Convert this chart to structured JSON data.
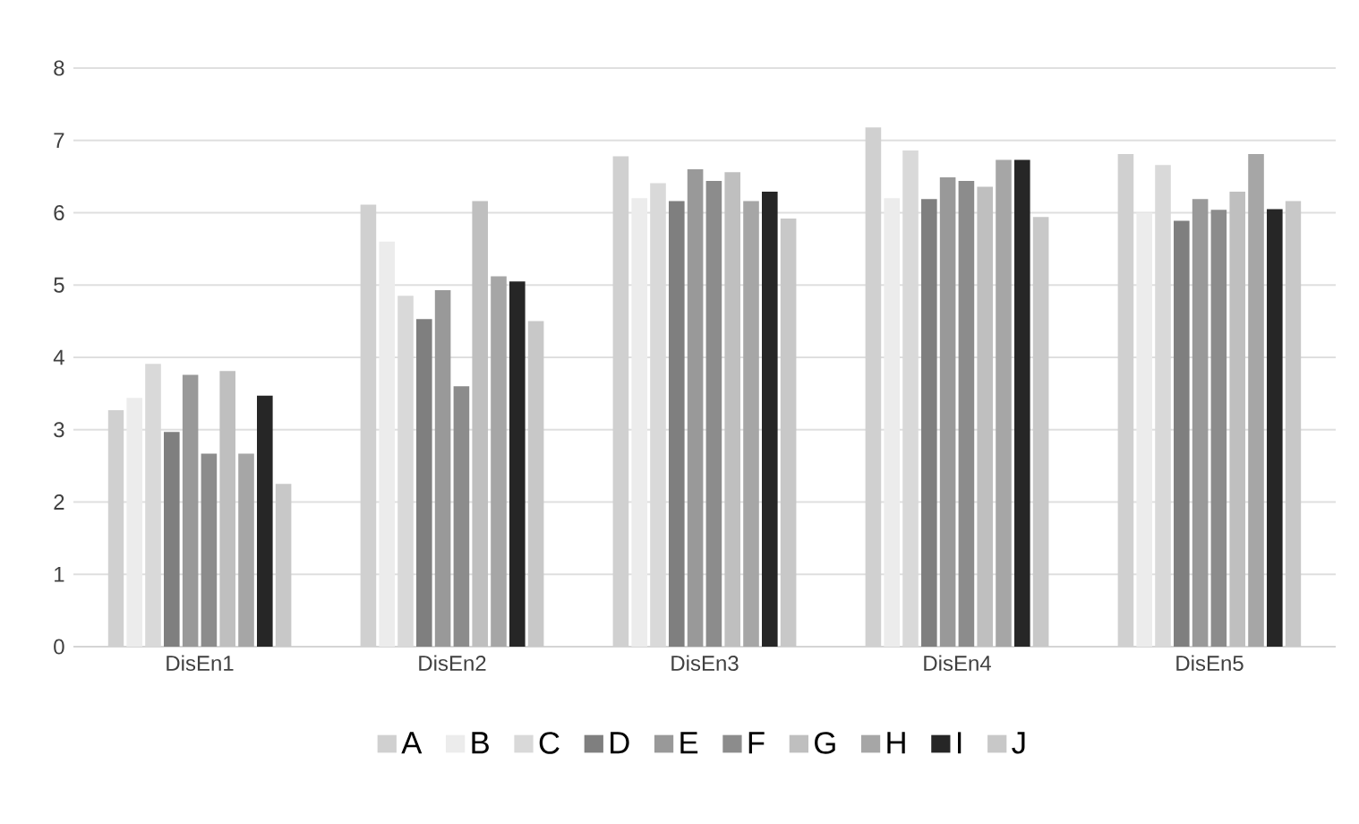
{
  "chart_data": {
    "type": "bar",
    "categories": [
      "DisEn1",
      "DisEn2",
      "DisEn3",
      "DisEn4",
      "DisEn5"
    ],
    "series": [
      {
        "name": "A",
        "color": "#d0d0d0",
        "values": [
          3.27,
          6.11,
          6.78,
          7.18,
          6.81
        ]
      },
      {
        "name": "B",
        "color": "#ececec",
        "values": [
          3.44,
          5.6,
          6.2,
          6.2,
          6.0
        ]
      },
      {
        "name": "C",
        "color": "#d9d9d9",
        "values": [
          3.91,
          4.85,
          6.41,
          6.86,
          6.66
        ]
      },
      {
        "name": "D",
        "color": "#7f7f7f",
        "values": [
          2.97,
          4.53,
          6.16,
          6.19,
          5.89
        ]
      },
      {
        "name": "E",
        "color": "#999999",
        "values": [
          3.76,
          4.93,
          6.6,
          6.49,
          6.19
        ]
      },
      {
        "name": "F",
        "color": "#8c8c8c",
        "values": [
          2.67,
          3.6,
          6.44,
          6.44,
          6.04
        ]
      },
      {
        "name": "G",
        "color": "#bfbfbf",
        "values": [
          3.81,
          6.16,
          6.56,
          6.36,
          6.29
        ]
      },
      {
        "name": "H",
        "color": "#a6a6a6",
        "values": [
          2.67,
          5.12,
          6.16,
          6.73,
          6.81
        ]
      },
      {
        "name": "I",
        "color": "#262626",
        "values": [
          3.47,
          5.05,
          6.29,
          6.73,
          6.05
        ]
      },
      {
        "name": "J",
        "color": "#c8c8c8",
        "values": [
          2.25,
          4.5,
          5.92,
          5.94,
          6.16
        ]
      }
    ],
    "ylim": [
      0,
      8
    ],
    "yticks": [
      0,
      1,
      2,
      3,
      4,
      5,
      6,
      7,
      8
    ],
    "grid": "y",
    "legend": "bottom"
  }
}
